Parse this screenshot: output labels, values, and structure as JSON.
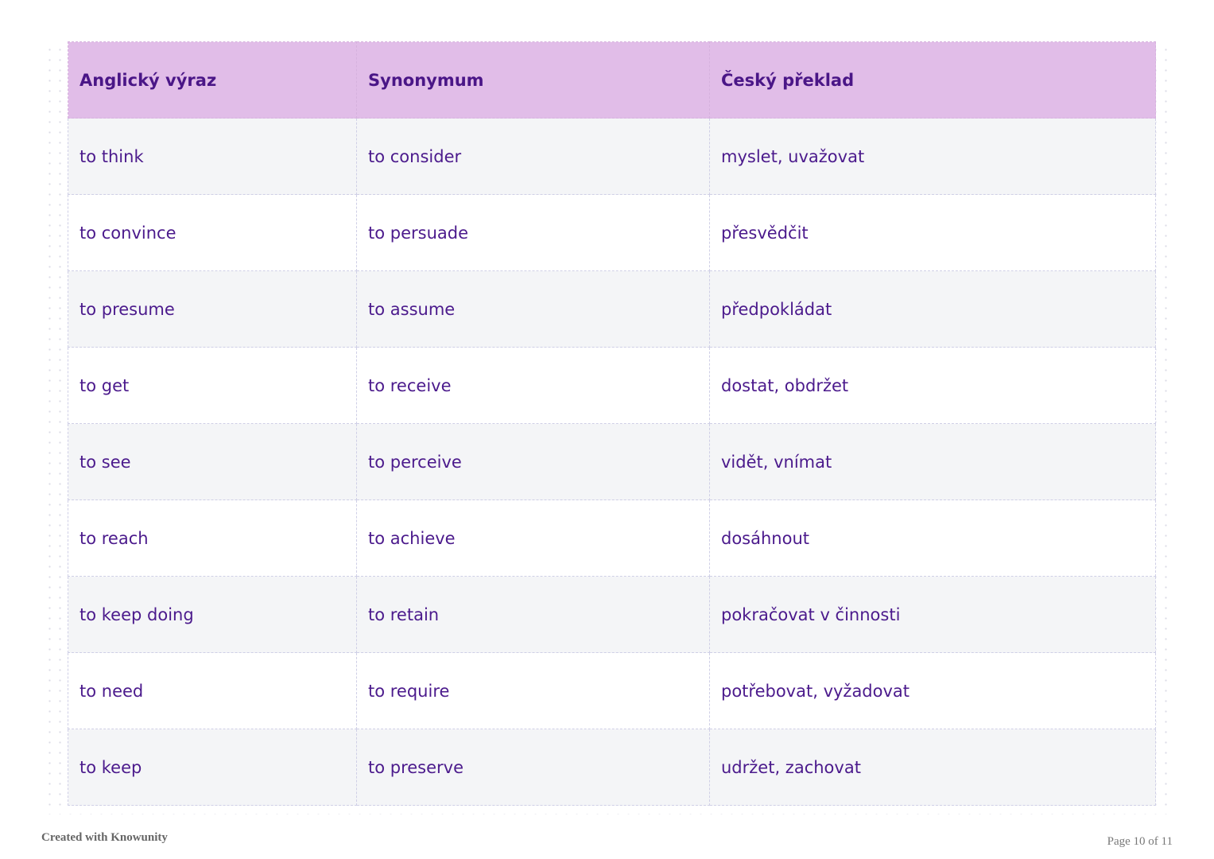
{
  "table": {
    "headers": [
      "Anglický výraz",
      "Synonymum",
      "Český překlad"
    ],
    "rows": [
      [
        "to think",
        "to consider",
        "myslet, uvažovat"
      ],
      [
        "to convince",
        "to persuade",
        "přesvědčit"
      ],
      [
        "to presume",
        "to assume",
        "předpokládat"
      ],
      [
        "to get",
        "to receive",
        "dostat, obdržet"
      ],
      [
        "to see",
        "to perceive",
        "vidět, vnímat"
      ],
      [
        "to reach",
        "to achieve",
        "dosáhnout"
      ],
      [
        "to keep doing",
        "to retain",
        "pokračovat v činnosti"
      ],
      [
        "to need",
        "to require",
        "potřebovat, vyžadovat"
      ],
      [
        "to keep",
        "to preserve",
        "udržet, zachovat"
      ]
    ]
  },
  "footer": {
    "created_with": "Created with Knowunity",
    "page": "Page 10 of 11"
  },
  "colors": {
    "header_bg": "#e1bde8",
    "text": "#4b1a8c",
    "row_alt_bg": "#f4f5f7"
  }
}
